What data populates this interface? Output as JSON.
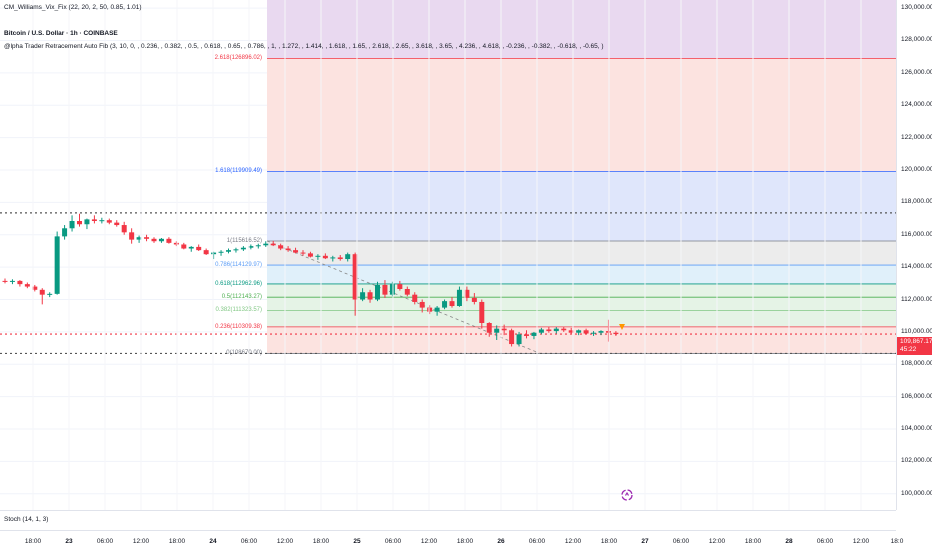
{
  "header": {
    "indicator_title": "CM_Williams_Vix_Fix (22, 20, 2, 50, 0.85, 1.01)",
    "symbol_title": "Bitcoin / U.S. Dollar · 1h · COINBASE",
    "fib_title": "@lpha Trader Retracement Auto Fib (3, 10, 0, , 0.236, , 0.382, , 0.5, , 0.618, , 0.65, , 0.786, , 1, , 1.272, , 1.414, , 1.618, , 1.65, , 2.618, , 2.65, , 3.618, , 3.65, , 4.236, , 4.618, , -0.236, , -0.382, , -0.618, , -0.65, )"
  },
  "fib_levels": [
    {
      "label": "2.618(126896.02)",
      "price": 126896.02,
      "color": "#f23645"
    },
    {
      "label": "1.618(119909.49)",
      "price": 119909.49,
      "color": "#2962ff"
    },
    {
      "label": "1(115616.52)",
      "price": 115616.52,
      "color": "#787b86"
    },
    {
      "label": "0.786(114129.97)",
      "price": 114129.97,
      "color": "#5b9cf6"
    },
    {
      "label": "0.618(112962.96)",
      "price": 112962.96,
      "color": "#089981"
    },
    {
      "label": "0.5(112143.27)",
      "price": 112143.27,
      "color": "#4caf50"
    },
    {
      "label": "0.382(111323.57)",
      "price": 111323.57,
      "color": "#81c784"
    },
    {
      "label": "0.236(110309.38)",
      "price": 110309.38,
      "color": "#f23645"
    },
    {
      "label": "0(108670.00)",
      "price": 108670.0,
      "color": "#787b86"
    }
  ],
  "price_axis": {
    "ticks": [
      "130,000.00",
      "128,000.00",
      "126,000.00",
      "124,000.00",
      "122,000.00",
      "120,000.00",
      "118,000.00",
      "116,000.00",
      "114,000.00",
      "112,000.00",
      "110,000.00",
      "108,000.00",
      "106,000.00",
      "104,000.00",
      "102,000.00",
      "100,000.00"
    ],
    "min": 99000,
    "max": 130500,
    "last_price": "109,867.17",
    "countdown": "45:22"
  },
  "time_axis": {
    "labels": [
      "18:00",
      "23",
      "06:00",
      "12:00",
      "18:00",
      "24",
      "06:00",
      "12:00",
      "18:00",
      "25",
      "06:00",
      "12:00",
      "18:00",
      "26",
      "06:00",
      "12:00",
      "18:00",
      "27",
      "06:00",
      "12:00",
      "18:00",
      "28",
      "06:00",
      "12:00",
      "18:0"
    ]
  },
  "stoch": {
    "label": "Stoch (14, 1, 3)"
  },
  "colors": {
    "up": "#089981",
    "down": "#f23645",
    "purple_zone": "#e9d9f0",
    "red_zone": "#fce3e0",
    "blue_zone": "#dfe6fb",
    "grey_zone": "#ececec",
    "light_blue_zone": "#e0f0fa",
    "green_zone": "#e5f3e6"
  },
  "chart_data": {
    "type": "candlestick",
    "last": 109867.17,
    "ohlc": [
      [
        113150,
        113300,
        113000,
        113100
      ],
      [
        113100,
        113250,
        112950,
        113150
      ],
      [
        113150,
        113200,
        112800,
        112950
      ],
      [
        112950,
        113050,
        112700,
        112800
      ],
      [
        112800,
        112900,
        112500,
        112600
      ],
      [
        112600,
        112700,
        111700,
        112300
      ],
      [
        112300,
        112450,
        112150,
        112350
      ],
      [
        112350,
        116200,
        112300,
        115900
      ],
      [
        115900,
        116600,
        115700,
        116400
      ],
      [
        116400,
        117200,
        116200,
        116850
      ],
      [
        116850,
        117300,
        116500,
        116650
      ],
      [
        116650,
        117000,
        116350,
        116950
      ],
      [
        116950,
        117200,
        116700,
        116850
      ],
      [
        116850,
        117050,
        116700,
        116900
      ],
      [
        116900,
        117000,
        116650,
        116750
      ],
      [
        116750,
        116900,
        116500,
        116600
      ],
      [
        116600,
        116800,
        116000,
        116150
      ],
      [
        116150,
        116400,
        115450,
        115700
      ],
      [
        115700,
        115950,
        115500,
        115850
      ],
      [
        115850,
        116000,
        115600,
        115750
      ],
      [
        115750,
        115850,
        115500,
        115600
      ],
      [
        115600,
        115800,
        115500,
        115750
      ],
      [
        115750,
        115850,
        115450,
        115500
      ],
      [
        115500,
        115600,
        115300,
        115400
      ],
      [
        115400,
        115500,
        115100,
        115150
      ],
      [
        115150,
        115300,
        114950,
        115250
      ],
      [
        115250,
        115400,
        115000,
        115050
      ],
      [
        115050,
        115150,
        114750,
        114800
      ],
      [
        114800,
        114950,
        114500,
        114900
      ],
      [
        114900,
        115050,
        114700,
        114950
      ],
      [
        114950,
        115150,
        114850,
        115050
      ],
      [
        115050,
        115200,
        114900,
        115100
      ],
      [
        115100,
        115300,
        115000,
        115200
      ],
      [
        115200,
        115400,
        115100,
        115300
      ],
      [
        115300,
        115450,
        115150,
        115350
      ],
      [
        115350,
        115600,
        115250,
        115450
      ],
      [
        115450,
        115620,
        115300,
        115350
      ],
      [
        115350,
        115450,
        115050,
        115150
      ],
      [
        115150,
        115300,
        114950,
        115050
      ],
      [
        115050,
        115200,
        114850,
        114900
      ],
      [
        114900,
        115050,
        114700,
        114850
      ],
      [
        114850,
        114950,
        114600,
        114650
      ],
      [
        114650,
        114800,
        114450,
        114700
      ],
      [
        114700,
        114850,
        114500,
        114550
      ],
      [
        114550,
        114700,
        114350,
        114600
      ],
      [
        114600,
        114750,
        114400,
        114500
      ],
      [
        114500,
        114900,
        114350,
        114800
      ],
      [
        114800,
        114900,
        111000,
        112000
      ],
      [
        112000,
        112700,
        111900,
        112450
      ],
      [
        112450,
        112600,
        111800,
        112000
      ],
      [
        112000,
        113100,
        111900,
        112900
      ],
      [
        112900,
        113200,
        112100,
        112300
      ],
      [
        112300,
        113100,
        112200,
        112950
      ],
      [
        112950,
        113150,
        112550,
        112650
      ],
      [
        112650,
        112800,
        112200,
        112300
      ],
      [
        112300,
        112450,
        111700,
        111850
      ],
      [
        111850,
        112000,
        111200,
        111500
      ],
      [
        111500,
        111650,
        111100,
        111250
      ],
      [
        111250,
        111600,
        111000,
        111500
      ],
      [
        111500,
        112000,
        111400,
        111900
      ],
      [
        111900,
        112150,
        111500,
        111600
      ],
      [
        111600,
        112800,
        111550,
        112600
      ],
      [
        112600,
        112800,
        111900,
        112100
      ],
      [
        112100,
        112400,
        111700,
        111850
      ],
      [
        111850,
        112000,
        110200,
        110550
      ],
      [
        110550,
        110600,
        109700,
        109950
      ],
      [
        109950,
        110400,
        109500,
        110200
      ],
      [
        110200,
        110450,
        109800,
        110100
      ],
      [
        110100,
        110200,
        109100,
        109250
      ],
      [
        109250,
        110000,
        109100,
        109850
      ],
      [
        109850,
        110100,
        109600,
        109750
      ],
      [
        109750,
        110000,
        109550,
        109950
      ],
      [
        109950,
        110250,
        109850,
        110150
      ],
      [
        110150,
        110300,
        109950,
        110050
      ],
      [
        110050,
        110300,
        109900,
        110200
      ],
      [
        110200,
        110300,
        110000,
        110100
      ],
      [
        110100,
        110250,
        109900,
        109950
      ],
      [
        109950,
        110150,
        109800,
        110100
      ],
      [
        110100,
        110200,
        109850,
        109900
      ],
      [
        109900,
        110050,
        109750,
        109950
      ],
      [
        109950,
        110100,
        109800,
        110050
      ],
      [
        110050,
        110750,
        109400,
        109950
      ],
      [
        109950,
        110050,
        109750,
        109867.17
      ]
    ]
  }
}
